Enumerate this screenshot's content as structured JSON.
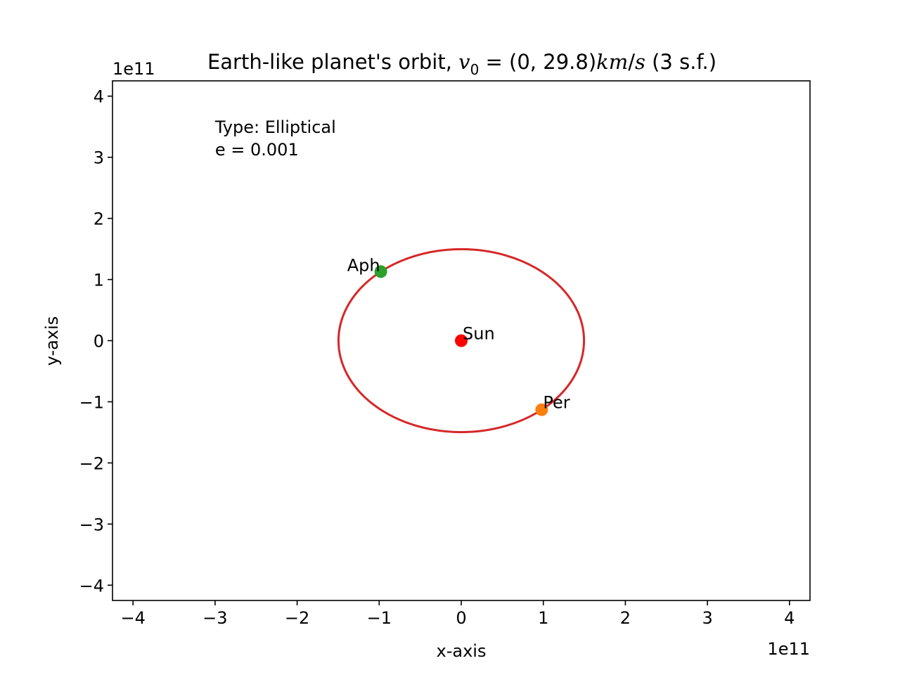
{
  "chart_data": {
    "type": "line",
    "title": {
      "prefix": "Earth-like planet's orbit, ",
      "v_symbol": "v",
      "v_subscript": "0",
      "equals": " = ",
      "vector": "(0, 29.8)",
      "unit_k": "k",
      "unit_m": "m",
      "unit_slash": "/",
      "unit_s": "s",
      "suffix": " (3 s.f.)"
    },
    "xlabel": "x-axis",
    "ylabel": "y-axis",
    "x_offset_label": "1e11",
    "y_offset_label": "1e11",
    "xlim": [
      -4.25,
      4.25
    ],
    "ylim": [
      -4.25,
      4.25
    ],
    "scale": 100000000000.0,
    "xticks": [
      -4,
      -3,
      -2,
      -1,
      0,
      1,
      2,
      3,
      4
    ],
    "yticks": [
      -4,
      -3,
      -2,
      -1,
      0,
      1,
      2,
      3,
      4
    ],
    "xtick_labels": [
      "−4",
      "−3",
      "−2",
      "−1",
      "0",
      "1",
      "2",
      "3",
      "4"
    ],
    "ytick_labels": [
      "−4",
      "−3",
      "−2",
      "−1",
      "0",
      "1",
      "2",
      "3",
      "4"
    ],
    "grid": false,
    "series": [
      {
        "type": "ellipse",
        "color": "#d62728",
        "center": [
          0,
          0
        ],
        "semi_major_x": 1.496,
        "semi_minor_y": 1.496
      }
    ],
    "points": [
      {
        "label": "Sun",
        "x": 0,
        "y": 0,
        "color": "#ff0000"
      },
      {
        "label": "Aph",
        "x": -0.98,
        "y": 1.13,
        "color": "#2ca02c"
      },
      {
        "label": "Per",
        "x": 0.98,
        "y": -1.13,
        "color": "#ff7f0e"
      }
    ],
    "annotations": {
      "type_line": "Type: Elliptical",
      "e_line": "e = 0.001",
      "anchor": [
        -3.0,
        3.4
      ]
    }
  }
}
